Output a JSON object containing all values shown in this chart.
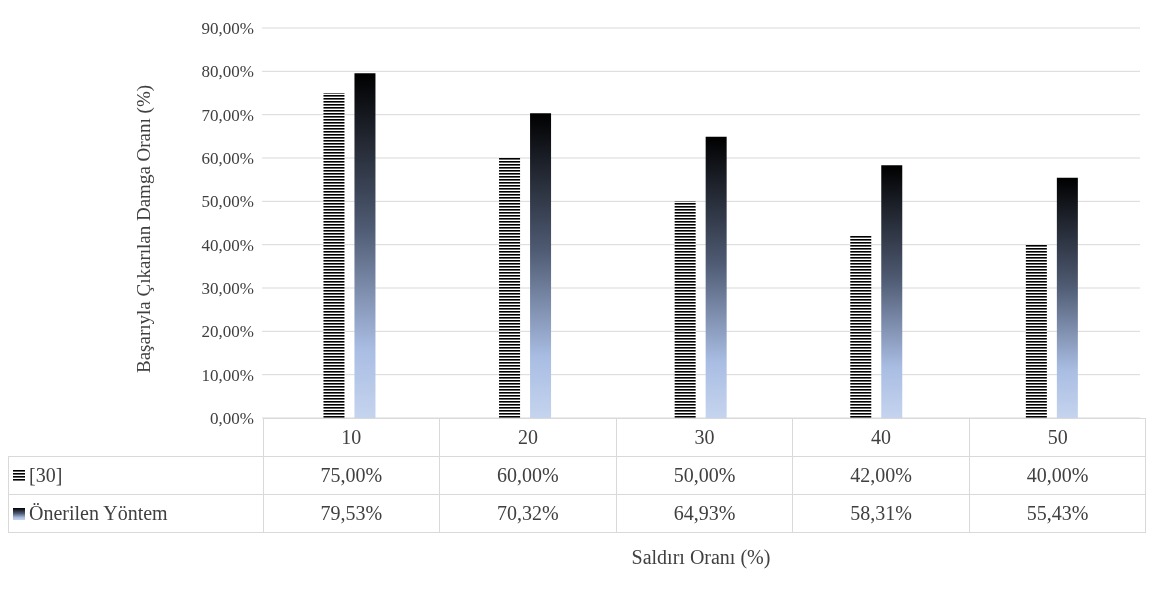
{
  "chart_data": {
    "type": "bar",
    "xlabel": "Saldırı Oranı (%)",
    "ylabel": "Başarıyla Çıkarılan Damga Oranı (%)",
    "categories": [
      "10",
      "20",
      "30",
      "40",
      "50"
    ],
    "series": [
      {
        "name": "[30]",
        "color": "#000000",
        "values": [
          75,
          60,
          50,
          42,
          40
        ],
        "value_labels": [
          "75,00%",
          "60,00%",
          "50,00%",
          "42,00%",
          "40,00%"
        ]
      },
      {
        "name": "Önerilen Yöntem",
        "color": "#000000",
        "values": [
          79.53,
          70.32,
          64.93,
          58.31,
          55.43
        ],
        "value_labels": [
          "79,53%",
          "70,32%",
          "64,93%",
          "58,31%",
          "55,43%"
        ]
      }
    ],
    "ylim": [
      0,
      90
    ],
    "yticks": [
      {
        "value": 0,
        "label": "0,00%"
      },
      {
        "value": 10,
        "label": "10,00%"
      },
      {
        "value": 20,
        "label": "20,00%"
      },
      {
        "value": 30,
        "label": "30,00%"
      },
      {
        "value": 40,
        "label": "40,00%"
      },
      {
        "value": 50,
        "label": "50,00%"
      },
      {
        "value": 60,
        "label": "60,00%"
      },
      {
        "value": 70,
        "label": "70,00%"
      },
      {
        "value": 80,
        "label": "80,00%"
      },
      {
        "value": 90,
        "label": "90,00%"
      }
    ],
    "grid": "y",
    "legend": "bottom left"
  }
}
